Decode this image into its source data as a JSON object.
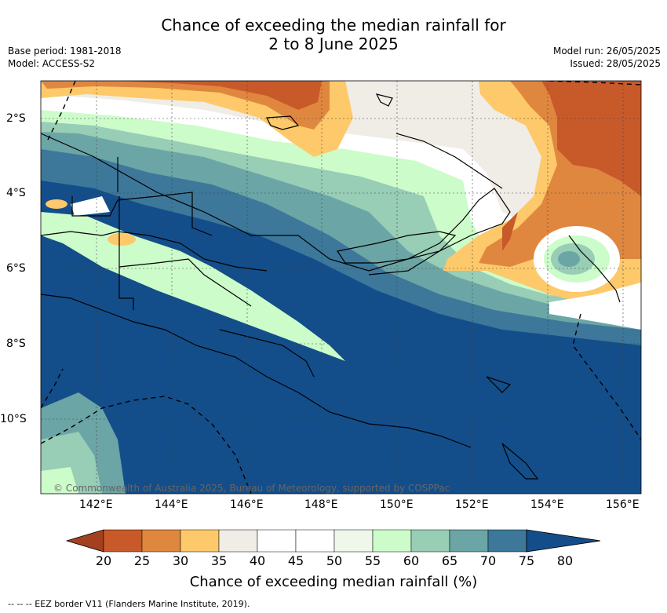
{
  "header": {
    "title_line1": "Chance of exceeding the median rainfall for",
    "title_line2": "2 to 8 June 2025",
    "base_period": "Base period: 1981-2018",
    "model": "Model: ACCESS-S2",
    "model_run": "Model run: 26/05/2025",
    "issued": "Issued: 28/05/2025"
  },
  "map": {
    "lat_labels": [
      "2°S",
      "4°S",
      "6°S",
      "8°S",
      "10°S"
    ],
    "lon_labels": [
      "142°E",
      "144°E",
      "146°E",
      "148°E",
      "150°E",
      "152°E",
      "154°E",
      "156°E"
    ],
    "copyright": "© Commonwealth of Australia 2025, Bureau of Meteorology, supported by COSPPac"
  },
  "colorbar": {
    "ticks": [
      "20",
      "25",
      "30",
      "35",
      "40",
      "45",
      "50",
      "55",
      "60",
      "65",
      "70",
      "75",
      "80"
    ],
    "colors": [
      "#a3401f",
      "#c85a2a",
      "#e0873f",
      "#fdc96a",
      "#f0ece6",
      "#ffffff",
      "#ffffff",
      "#eef7ea",
      "#ccfcca",
      "#98cdb6",
      "#6ba5a6",
      "#3d7799",
      "#134e8a"
    ],
    "label": "Chance of exceeding median rainfall (%)"
  },
  "footer": {
    "legend": "--  --  -- EEZ border V11 (Flanders Marine Institute, 2019)."
  }
}
